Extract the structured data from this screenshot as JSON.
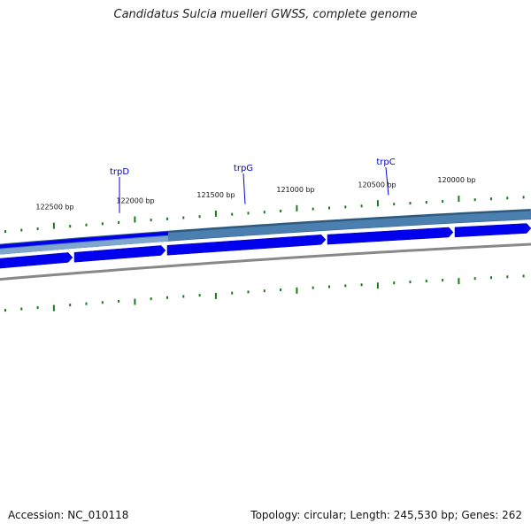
{
  "title": "Candidatus Sulcia muelleri GWSS, complete genome",
  "footer": {
    "accession": "Accession: NC_010118",
    "summary": "Topology: circular; Length: 245,530 bp; Genes: 262"
  },
  "colors": {
    "gene_fill": "#0000ee",
    "outer_band": "#4a7fb0",
    "inner_ring": "#888888",
    "tick": "#1a7a1a",
    "gene_label": "#0000cc"
  },
  "ruler": {
    "labels": [
      "122500 bp",
      "122000 bp",
      "121500 bp",
      "121000 bp",
      "120500 bp",
      "120000 bp"
    ]
  },
  "genes": [
    {
      "name": "trpD"
    },
    {
      "name": "trpG"
    },
    {
      "name": "trpC"
    }
  ]
}
